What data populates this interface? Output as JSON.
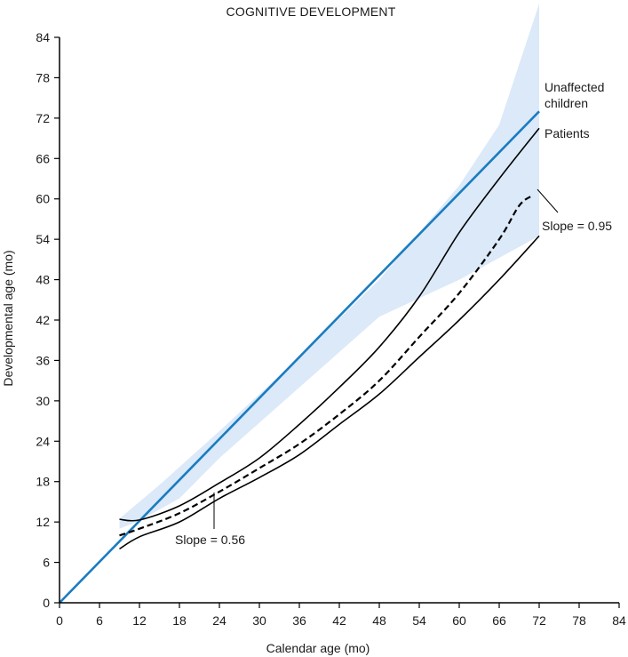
{
  "chart_data": {
    "type": "line",
    "title": "COGNITIVE DEVELOPMENT",
    "xlabel": "Calendar age (mo)",
    "ylabel": "Developmental age (mo)",
    "xlim": [
      0,
      84
    ],
    "ylim": [
      0,
      84
    ],
    "xticks": [
      0,
      6,
      12,
      18,
      24,
      30,
      36,
      42,
      48,
      54,
      60,
      66,
      72,
      78,
      84
    ],
    "yticks": [
      0,
      6,
      12,
      18,
      24,
      30,
      36,
      42,
      48,
      54,
      60,
      66,
      72,
      78,
      84
    ],
    "grid": false,
    "band": {
      "color": "#dbe9f8",
      "upper": [
        [
          9,
          12.5
        ],
        [
          15,
          17.5
        ],
        [
          24,
          25.5
        ],
        [
          36,
          36.5
        ],
        [
          48,
          48
        ],
        [
          60,
          62
        ],
        [
          66,
          71
        ],
        [
          72,
          89
        ]
      ],
      "lower": [
        [
          72,
          54.5
        ],
        [
          60,
          48
        ],
        [
          48,
          42.5
        ],
        [
          36,
          32
        ],
        [
          24,
          21.5
        ],
        [
          18,
          15.5
        ],
        [
          12,
          12.2
        ],
        [
          9,
          11
        ]
      ]
    },
    "series": [
      {
        "name": "Unaffected children",
        "color": "#1a7cc1",
        "style": "solid",
        "points": [
          [
            0,
            0
          ],
          [
            72,
            73
          ]
        ]
      },
      {
        "name": "Patients",
        "color": "#000000",
        "style": "solid",
        "points": [
          [
            9,
            12.4
          ],
          [
            12,
            12.3
          ],
          [
            18,
            14.4
          ],
          [
            24,
            17.8
          ],
          [
            30,
            21.5
          ],
          [
            36,
            26.5
          ],
          [
            42,
            32
          ],
          [
            48,
            38
          ],
          [
            54,
            45.5
          ],
          [
            60,
            55
          ],
          [
            66,
            63
          ],
          [
            72,
            70.5
          ]
        ]
      },
      {
        "name": "",
        "color": "#000000",
        "style": "dashed",
        "points": [
          [
            9,
            10
          ],
          [
            12,
            11
          ],
          [
            18,
            13.3
          ],
          [
            24,
            16.5
          ],
          [
            30,
            20
          ],
          [
            36,
            23.6
          ],
          [
            42,
            28
          ],
          [
            48,
            33
          ],
          [
            54,
            39.5
          ],
          [
            60,
            46
          ],
          [
            66,
            54
          ],
          [
            69,
            59
          ],
          [
            71,
            60.5
          ]
        ]
      },
      {
        "name": "",
        "color": "#000000",
        "style": "solid",
        "points": [
          [
            9,
            8
          ],
          [
            12,
            9.8
          ],
          [
            18,
            12
          ],
          [
            24,
            15.5
          ],
          [
            30,
            18.6
          ],
          [
            36,
            22
          ],
          [
            42,
            26.5
          ],
          [
            48,
            31
          ],
          [
            54,
            36.5
          ],
          [
            60,
            42
          ],
          [
            66,
            48
          ],
          [
            72,
            54.5
          ]
        ]
      }
    ],
    "annotations": [
      {
        "text": "Slope = 0.95",
        "points_at": [
          70,
          61
        ]
      },
      {
        "text": "Slope = 0.56",
        "points_at": [
          23.5,
          16.5
        ]
      }
    ],
    "legend": [
      {
        "line1": "Unaffected children",
        "placement": "right of blue line end"
      },
      {
        "line1": "Patients",
        "placement": "right of upper black line end"
      }
    ]
  },
  "labels": {
    "unaffected_1": "Unaffected",
    "unaffected_2": "children",
    "patients": "Patients",
    "slope_upper": "Slope = 0.95",
    "slope_lower": "Slope = 0.56"
  }
}
